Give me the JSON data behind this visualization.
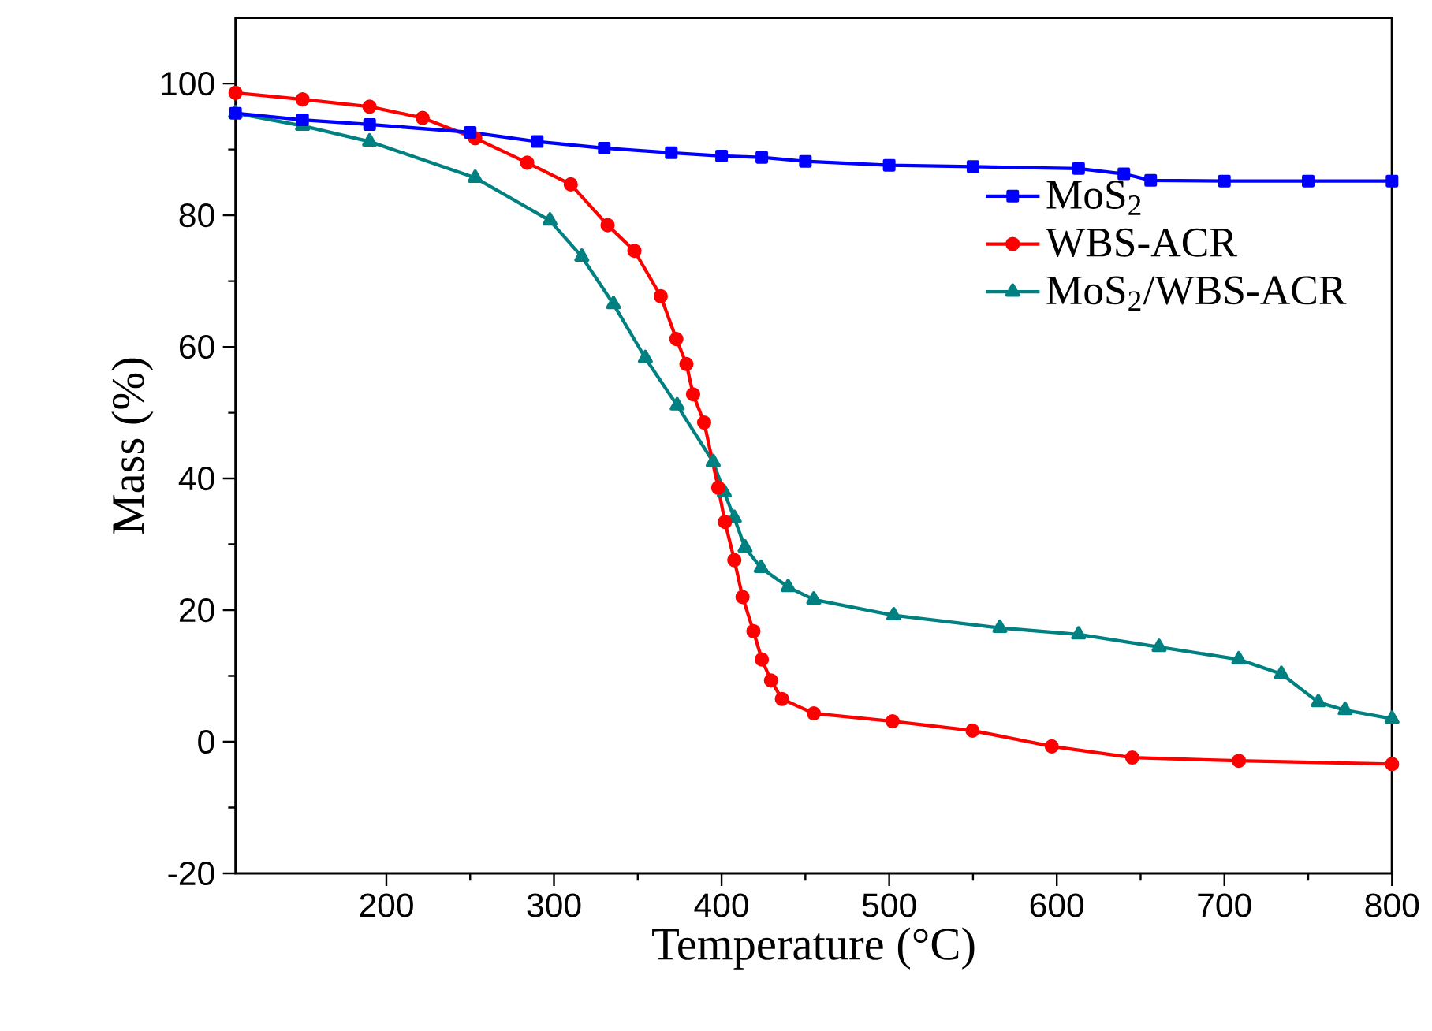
{
  "chart_data": {
    "type": "line",
    "xlabel": "Temperature (°C)",
    "ylabel": "Mass (%)",
    "xlim": [
      110,
      800
    ],
    "ylim": [
      -20,
      110
    ],
    "xticks": [
      200,
      300,
      400,
      500,
      600,
      700,
      800
    ],
    "yticks": [
      -20,
      0,
      20,
      40,
      60,
      80,
      100
    ],
    "legend": "top right",
    "series": [
      {
        "name": "MoS$_{2}$",
        "color": "#0000ff",
        "marker": "square",
        "x": [
          110,
          150,
          190,
          250,
          290,
          330,
          370,
          400,
          424,
          450,
          500,
          550,
          613,
          640,
          656,
          700,
          750,
          800
        ],
        "values": [
          95.5,
          94.5,
          93.8,
          92.6,
          91.2,
          90.2,
          89.5,
          89.0,
          88.8,
          88.2,
          87.6,
          87.4,
          87.1,
          86.3,
          85.3,
          85.2,
          85.2,
          85.2
        ]
      },
      {
        "name": "WBS-ACR",
        "color": "#ff0000",
        "marker": "circle",
        "x": [
          110,
          150,
          190,
          221.6,
          253,
          284,
          310,
          332,
          348,
          363.7,
          373,
          379,
          383,
          389.6,
          398,
          402,
          407.6,
          412.5,
          419,
          424,
          429.5,
          436,
          455,
          502,
          549.7,
          597,
          645,
          708.6,
          800
        ],
        "values": [
          98.6,
          97.6,
          96.5,
          94.8,
          91.7,
          88,
          84.7,
          78.5,
          74.6,
          67.7,
          61.2,
          57.4,
          52.8,
          48.5,
          38.6,
          33.4,
          27.6,
          22,
          16.8,
          12.5,
          9.3,
          6.5,
          4.3,
          3.1,
          1.7,
          -0.7,
          -2.4,
          -2.9,
          -3.4
        ]
      },
      {
        "name": "MoS$_{2}$/WBS-ACR",
        "color": "#008080",
        "marker": "triangle",
        "x": [
          110,
          150,
          190,
          253,
          297.6,
          316.6,
          335.5,
          354.5,
          373.5,
          395,
          401.6,
          407.6,
          414,
          423.6,
          439.7,
          455,
          502.7,
          566,
          613,
          661,
          708.6,
          734,
          756,
          772,
          800
        ],
        "values": [
          95.5,
          93.6,
          91.2,
          85.7,
          79.2,
          73.7,
          66.5,
          58.3,
          51.1,
          42.5,
          37.9,
          34,
          29.5,
          26.4,
          23.5,
          21.6,
          19.2,
          17.3,
          16.3,
          14.4,
          12.5,
          10.3,
          6,
          4.8,
          3.5
        ]
      }
    ]
  }
}
